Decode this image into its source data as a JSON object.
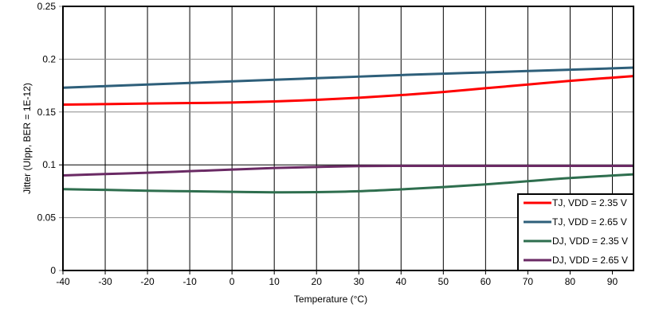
{
  "chart_data": {
    "type": "line",
    "title": "",
    "xlabel": "Temperature (°C)",
    "ylabel": "Jitter (UIpp, BER = 1E-12)",
    "xlim": [
      -40,
      95
    ],
    "ylim": [
      0,
      0.25
    ],
    "xticks": [
      "-40",
      "-30",
      "-20",
      "-10",
      "0",
      "10",
      "20",
      "30",
      "40",
      "50",
      "60",
      "70",
      "80",
      "90"
    ],
    "yticks": [
      "0",
      "0.05",
      "0.1",
      "0.15",
      "0.2",
      "0.25"
    ],
    "grid": true,
    "legend_position": "bottom-right",
    "x": [
      -40,
      -30,
      -20,
      -10,
      0,
      10,
      20,
      30,
      40,
      50,
      60,
      70,
      80,
      95
    ],
    "series": [
      {
        "name": "TJ, VDD = 2.35 V",
        "color": "#ff0000",
        "values": [
          0.157,
          0.1575,
          0.158,
          0.1585,
          0.159,
          0.16,
          0.1615,
          0.1635,
          0.166,
          0.169,
          0.1725,
          0.176,
          0.1795,
          0.184
        ]
      },
      {
        "name": "TJ, VDD = 2.65 V",
        "color": "#2e5f7a",
        "values": [
          0.173,
          0.1745,
          0.176,
          0.1775,
          0.179,
          0.1805,
          0.182,
          0.1835,
          0.185,
          0.1863,
          0.1875,
          0.1888,
          0.19,
          0.192
        ]
      },
      {
        "name": "DJ, VDD = 2.35 V",
        "color": "#2e6e4e",
        "values": [
          0.077,
          0.0763,
          0.0755,
          0.075,
          0.0745,
          0.074,
          0.0742,
          0.075,
          0.0768,
          0.079,
          0.0815,
          0.0845,
          0.0875,
          0.091
        ]
      },
      {
        "name": "DJ, VDD = 2.65 V",
        "color": "#6a2a64",
        "values": [
          0.09,
          0.0913,
          0.0925,
          0.094,
          0.0955,
          0.097,
          0.098,
          0.0988,
          0.099,
          0.099,
          0.099,
          0.099,
          0.099,
          0.099
        ]
      }
    ]
  }
}
